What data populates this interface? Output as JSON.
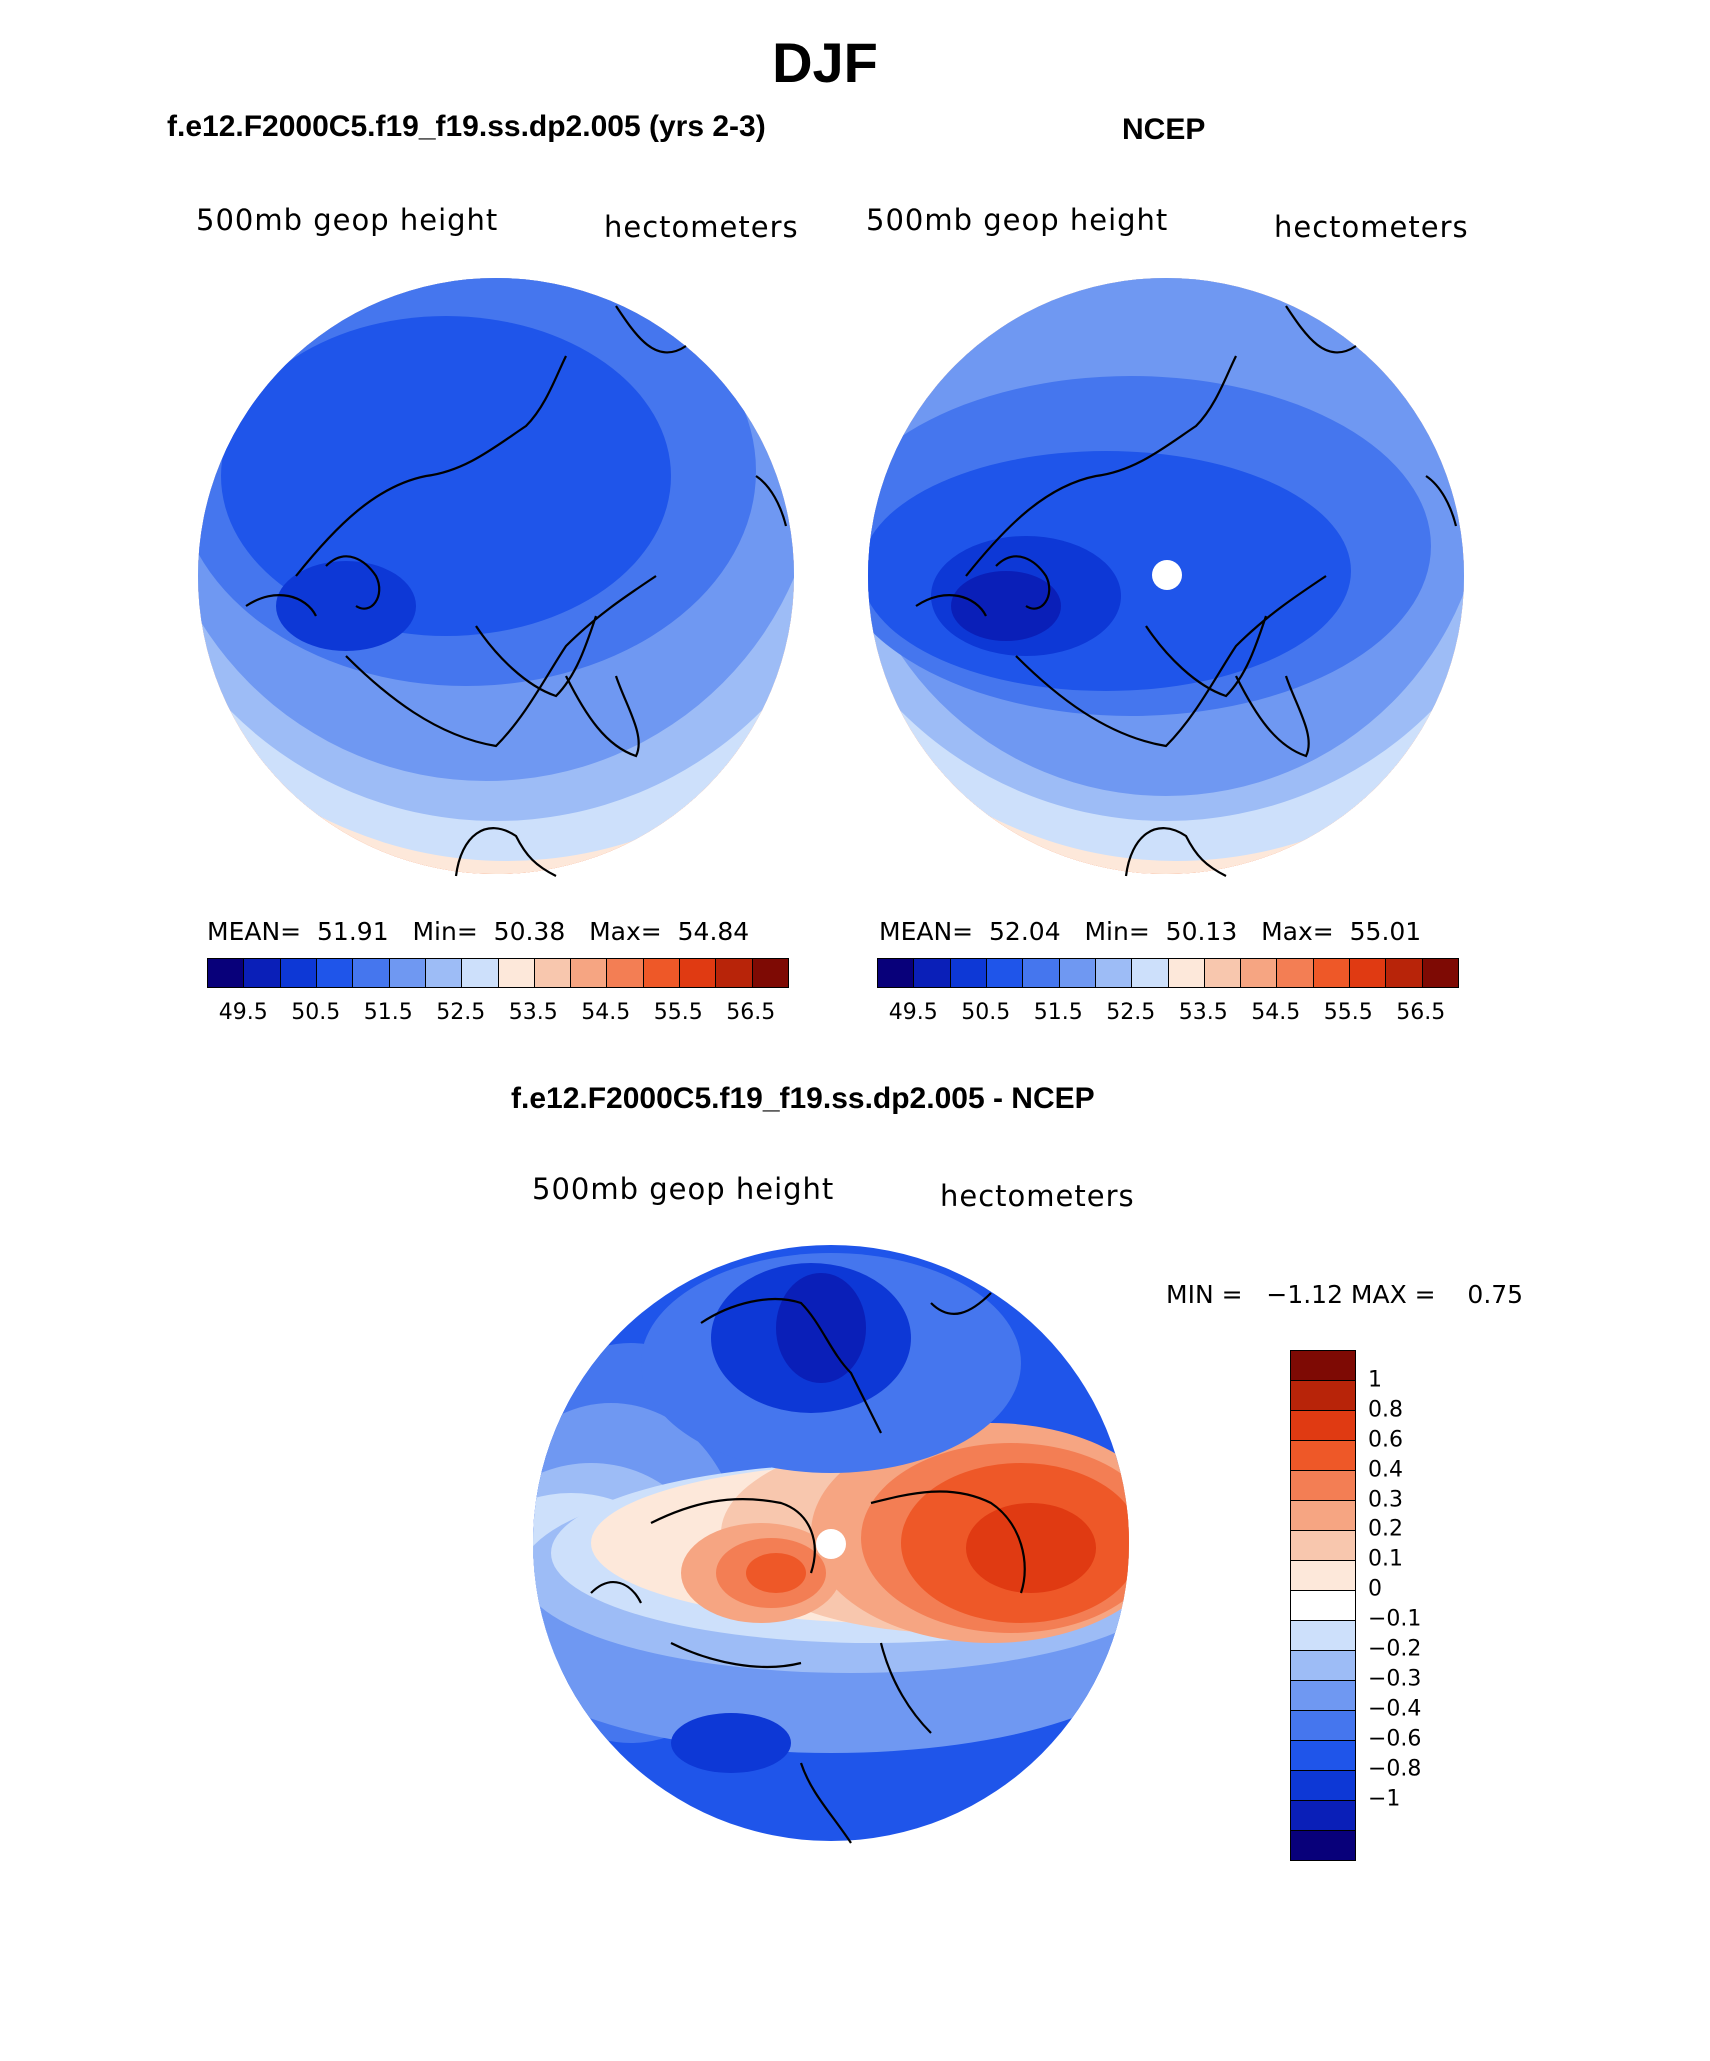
{
  "title": "DJF",
  "panels": [
    {
      "title": "f.e12.F2000C5.f19_f19.ss.dp2.005 (yrs 2-3)",
      "left_label": "500mb geop height",
      "right_label": "hectometers",
      "mean_label": "MEAN=",
      "mean": "51.91",
      "min_label": "Min=",
      "min": "50.38",
      "max_label": "Max=",
      "max": "54.84"
    },
    {
      "title": "NCEP",
      "left_label": "500mb geop height",
      "right_label": "hectometers",
      "mean_label": "MEAN=",
      "mean": "52.04",
      "min_label": "Min=",
      "min": "50.13",
      "max_label": "Max=",
      "max": "55.01"
    }
  ],
  "colorbar_top": {
    "colors": [
      "#08007a",
      "#0a1fb8",
      "#0d38d6",
      "#1f55ea",
      "#4576ee",
      "#6f98f2",
      "#9dbcf6",
      "#cde0fb",
      "#fde8da",
      "#f8c7ae",
      "#f6a582",
      "#f37e54",
      "#ee5828",
      "#e03a12",
      "#b82409",
      "#7e0a04"
    ],
    "tick_labels": [
      "49.5",
      "50.5",
      "51.5",
      "52.5",
      "53.5",
      "54.5",
      "55.5",
      "56.5"
    ]
  },
  "difference": {
    "title": "f.e12.F2000C5.f19_f19.ss.dp2.005 - NCEP",
    "left_label": "500mb geop height",
    "right_label": "hectometers",
    "minmax_text": "MIN =   −1.12 MAX =    0.75",
    "colorbar": {
      "colors": [
        "#7e0a04",
        "#b82409",
        "#e03a12",
        "#ee5828",
        "#f37e54",
        "#f6a582",
        "#f8c7ae",
        "#fde8da",
        "#ffffff",
        "#cde0fb",
        "#9dbcf6",
        "#6f98f2",
        "#4576ee",
        "#1f55ea",
        "#0d38d6",
        "#0a1fb8",
        "#08007a"
      ],
      "tick_labels": [
        "1",
        "0.8",
        "0.6",
        "0.4",
        "0.3",
        "0.2",
        "0.1",
        "0",
        "−0.1",
        "−0.2",
        "−0.3",
        "−0.4",
        "−0.6",
        "−0.8",
        "−1"
      ]
    }
  },
  "map_colors": {
    "d1": "#0d38d6",
    "d2": "#1f55ea",
    "d3": "#4576ee",
    "d4": "#6f98f2",
    "d5": "#9dbcf6",
    "d6": "#cde0fb",
    "w1": "#fde8da",
    "w2": "#f8c7ae",
    "w3": "#f6a582",
    "w4": "#f37e54",
    "w5": "#ee5828",
    "w6": "#e03a12",
    "deep": "#0a1fb8",
    "coast": "#000000"
  }
}
